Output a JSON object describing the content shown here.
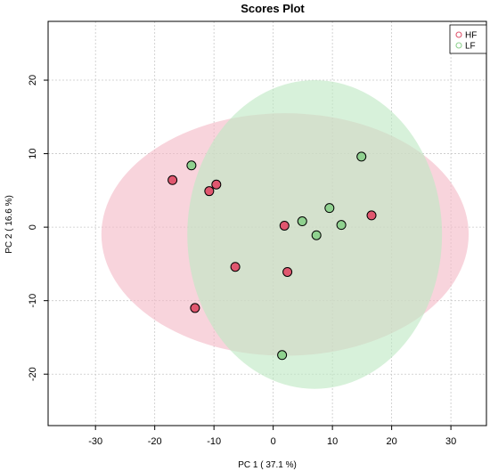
{
  "chart_data": {
    "type": "scatter",
    "title": "Scores Plot",
    "xlabel": "PC 1 ( 37.1 %)",
    "ylabel": "PC 2 ( 16.6 %)",
    "xlim": [
      -38,
      36
    ],
    "ylim": [
      -27,
      28
    ],
    "x_ticks": [
      -30,
      -20,
      -10,
      0,
      10,
      20,
      30
    ],
    "y_ticks": [
      -20,
      -10,
      0,
      10,
      20
    ],
    "x_tick_labels": [
      "-30",
      "-20",
      "-10",
      "0",
      "10",
      "20",
      "30"
    ],
    "y_tick_labels": [
      "-20",
      "-10",
      "0",
      "10",
      "20"
    ],
    "grid": true,
    "legend_position": "top-right",
    "series": [
      {
        "name": "HF",
        "color": "#e0576f",
        "ellipse_fill": "#f4b9c7",
        "points": [
          {
            "x": -17.0,
            "y": 6.4
          },
          {
            "x": -9.6,
            "y": 5.8
          },
          {
            "x": -10.8,
            "y": 4.9
          },
          {
            "x": 1.9,
            "y": 0.2
          },
          {
            "x": 16.6,
            "y": 1.6
          },
          {
            "x": -6.4,
            "y": -5.4
          },
          {
            "x": 2.4,
            "y": -6.1
          },
          {
            "x": -13.2,
            "y": -11.0
          }
        ],
        "ellipse": {
          "cx": 2.0,
          "cy": -1.0,
          "rx": 31,
          "ry": 16.5
        }
      },
      {
        "name": "LF",
        "color": "#8fd18f",
        "ellipse_fill": "#bfe8c3",
        "points": [
          {
            "x": -13.8,
            "y": 8.4
          },
          {
            "x": 14.9,
            "y": 9.6
          },
          {
            "x": 9.5,
            "y": 2.6
          },
          {
            "x": 4.9,
            "y": 0.8
          },
          {
            "x": 11.5,
            "y": 0.3
          },
          {
            "x": 7.3,
            "y": -1.1
          },
          {
            "x": 1.5,
            "y": -17.4
          }
        ],
        "ellipse": {
          "cx": 7.0,
          "cy": -1.0,
          "rx": 21.5,
          "ry": 21
        }
      }
    ]
  }
}
